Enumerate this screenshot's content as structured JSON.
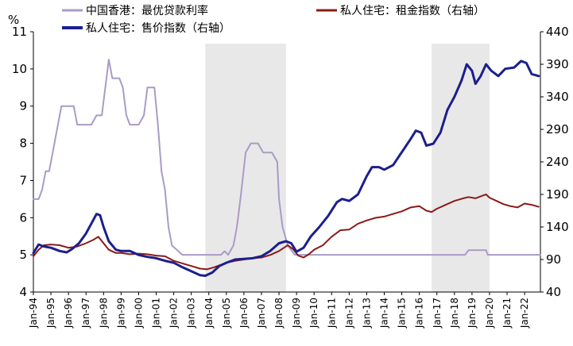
{
  "chart_data": {
    "type": "line",
    "left_axis_unit": "%",
    "left_axis": {
      "ylim": [
        4,
        11
      ],
      "ticks": [
        "4",
        "5",
        "6",
        "7",
        "8",
        "9",
        "10",
        "11"
      ]
    },
    "right_axis": {
      "ylim": [
        40,
        440
      ],
      "ticks": [
        "40",
        "90",
        "140",
        "190",
        "240",
        "290",
        "340",
        "390",
        "440"
      ]
    },
    "x_range": [
      1994.0,
      2022.9
    ],
    "x_tick_labels": [
      "Jan-94",
      "Jan-95",
      "Jan-96",
      "Jan-97",
      "Jan-98",
      "Jan-99",
      "Jan-00",
      "Jan-01",
      "Jan-02",
      "Jan-03",
      "Jan-04",
      "Jan-05",
      "Jan-06",
      "Jan-07",
      "Jan-08",
      "Jan-09",
      "Jan-10",
      "Jan-11",
      "Jan-12",
      "Jan-13",
      "Jan-14",
      "Jan-15",
      "Jan-16",
      "Jan-17",
      "Jan-18",
      "Jan-19",
      "Jan-20",
      "Jan-21",
      "Jan-22"
    ],
    "shaded_periods": [
      [
        2003.8,
        2008.4
      ],
      [
        2016.7,
        2020.0
      ]
    ],
    "series": [
      {
        "name": "中国香港：最优贷款利率",
        "axis": "left",
        "color": "#a99bc7",
        "points": [
          [
            1994.0,
            6.5
          ],
          [
            1994.3,
            6.5
          ],
          [
            1994.5,
            6.75
          ],
          [
            1994.7,
            7.25
          ],
          [
            1994.9,
            7.25
          ],
          [
            1995.1,
            7.75
          ],
          [
            1995.4,
            8.5
          ],
          [
            1995.6,
            9.0
          ],
          [
            1995.9,
            9.0
          ],
          [
            1996.3,
            9.0
          ],
          [
            1996.5,
            8.5
          ],
          [
            1996.8,
            8.5
          ],
          [
            1997.3,
            8.5
          ],
          [
            1997.6,
            8.75
          ],
          [
            1997.9,
            8.75
          ],
          [
            1998.1,
            9.5
          ],
          [
            1998.3,
            10.25
          ],
          [
            1998.5,
            9.75
          ],
          [
            1998.9,
            9.75
          ],
          [
            1999.1,
            9.5
          ],
          [
            1999.3,
            8.75
          ],
          [
            1999.5,
            8.5
          ],
          [
            1999.8,
            8.5
          ],
          [
            2000.0,
            8.5
          ],
          [
            2000.3,
            8.75
          ],
          [
            2000.5,
            9.5
          ],
          [
            2000.9,
            9.5
          ],
          [
            2001.1,
            8.5
          ],
          [
            2001.3,
            7.25
          ],
          [
            2001.5,
            6.75
          ],
          [
            2001.7,
            5.75
          ],
          [
            2001.9,
            5.25
          ],
          [
            2002.5,
            5.0
          ],
          [
            2002.9,
            5.0
          ],
          [
            2003.5,
            5.0
          ],
          [
            2004.0,
            5.0
          ],
          [
            2004.7,
            5.0
          ],
          [
            2004.9,
            5.1
          ],
          [
            2005.1,
            5.0
          ],
          [
            2005.4,
            5.25
          ],
          [
            2005.6,
            5.75
          ],
          [
            2005.8,
            6.5
          ],
          [
            2006.1,
            7.75
          ],
          [
            2006.4,
            8.0
          ],
          [
            2006.8,
            8.0
          ],
          [
            2007.1,
            7.75
          ],
          [
            2007.6,
            7.75
          ],
          [
            2007.9,
            7.5
          ],
          [
            2008.0,
            6.5
          ],
          [
            2008.2,
            5.75
          ],
          [
            2008.5,
            5.25
          ],
          [
            2008.9,
            5.0
          ],
          [
            2009.3,
            5.0
          ],
          [
            2012.0,
            5.0
          ],
          [
            2015.0,
            5.0
          ],
          [
            2018.0,
            5.0
          ],
          [
            2018.6,
            5.0
          ],
          [
            2018.8,
            5.125
          ],
          [
            2019.8,
            5.125
          ],
          [
            2019.9,
            5.0
          ],
          [
            2022.0,
            5.0
          ],
          [
            2022.9,
            5.0
          ]
        ]
      },
      {
        "name": "私人住宅：租金指数（右轴）",
        "axis": "right",
        "color": "#8b1a1a",
        "points": [
          [
            1994.0,
            95
          ],
          [
            1994.3,
            105
          ],
          [
            1994.6,
            112
          ],
          [
            1995.0,
            113
          ],
          [
            1995.5,
            112
          ],
          [
            1996.0,
            108
          ],
          [
            1996.5,
            110
          ],
          [
            1997.0,
            115
          ],
          [
            1997.4,
            120
          ],
          [
            1997.7,
            125
          ],
          [
            1998.0,
            115
          ],
          [
            1998.3,
            105
          ],
          [
            1998.7,
            100
          ],
          [
            1999.0,
            100
          ],
          [
            1999.5,
            98
          ],
          [
            2000.0,
            99
          ],
          [
            2000.5,
            98
          ],
          [
            2001.0,
            96
          ],
          [
            2001.5,
            95
          ],
          [
            2002.0,
            88
          ],
          [
            2002.5,
            84
          ],
          [
            2003.0,
            80
          ],
          [
            2003.5,
            76
          ],
          [
            2003.9,
            75
          ],
          [
            2004.3,
            78
          ],
          [
            2004.7,
            82
          ],
          [
            2005.0,
            85
          ],
          [
            2005.5,
            88
          ],
          [
            2006.0,
            90
          ],
          [
            2006.5,
            92
          ],
          [
            2007.0,
            93
          ],
          [
            2007.5,
            97
          ],
          [
            2008.0,
            103
          ],
          [
            2008.5,
            112
          ],
          [
            2008.8,
            106
          ],
          [
            2009.1,
            96
          ],
          [
            2009.4,
            93
          ],
          [
            2009.7,
            98
          ],
          [
            2010.0,
            105
          ],
          [
            2010.5,
            112
          ],
          [
            2011.0,
            125
          ],
          [
            2011.5,
            135
          ],
          [
            2012.0,
            136
          ],
          [
            2012.5,
            145
          ],
          [
            2013.0,
            150
          ],
          [
            2013.5,
            154
          ],
          [
            2014.0,
            156
          ],
          [
            2014.5,
            160
          ],
          [
            2015.0,
            164
          ],
          [
            2015.5,
            170
          ],
          [
            2016.0,
            172
          ],
          [
            2016.4,
            165
          ],
          [
            2016.7,
            163
          ],
          [
            2017.0,
            168
          ],
          [
            2017.5,
            174
          ],
          [
            2018.0,
            180
          ],
          [
            2018.5,
            184
          ],
          [
            2018.8,
            186
          ],
          [
            2019.2,
            184
          ],
          [
            2019.6,
            188
          ],
          [
            2019.8,
            190
          ],
          [
            2020.0,
            185
          ],
          [
            2020.4,
            180
          ],
          [
            2020.8,
            175
          ],
          [
            2021.2,
            172
          ],
          [
            2021.6,
            170
          ],
          [
            2022.0,
            176
          ],
          [
            2022.4,
            174
          ],
          [
            2022.8,
            171
          ]
        ]
      },
      {
        "name": "私人住宅：售价指数（右轴）",
        "axis": "right",
        "color": "#1c1f8c",
        "points": [
          [
            1994.0,
            100
          ],
          [
            1994.3,
            113
          ],
          [
            1994.6,
            110
          ],
          [
            1995.0,
            108
          ],
          [
            1995.5,
            103
          ],
          [
            1995.9,
            101
          ],
          [
            1996.2,
            106
          ],
          [
            1996.6,
            115
          ],
          [
            1997.0,
            130
          ],
          [
            1997.4,
            150
          ],
          [
            1997.6,
            160
          ],
          [
            1997.8,
            158
          ],
          [
            1998.0,
            140
          ],
          [
            1998.3,
            118
          ],
          [
            1998.7,
            105
          ],
          [
            1999.0,
            103
          ],
          [
            1999.5,
            103
          ],
          [
            2000.0,
            97
          ],
          [
            2000.5,
            94
          ],
          [
            2001.0,
            92
          ],
          [
            2001.5,
            88
          ],
          [
            2002.0,
            85
          ],
          [
            2002.5,
            78
          ],
          [
            2003.0,
            72
          ],
          [
            2003.5,
            66
          ],
          [
            2003.8,
            65
          ],
          [
            2004.2,
            70
          ],
          [
            2004.6,
            80
          ],
          [
            2005.0,
            85
          ],
          [
            2005.5,
            90
          ],
          [
            2006.0,
            91
          ],
          [
            2006.5,
            92
          ],
          [
            2007.0,
            95
          ],
          [
            2007.5,
            103
          ],
          [
            2008.0,
            115
          ],
          [
            2008.4,
            118
          ],
          [
            2008.7,
            115
          ],
          [
            2009.0,
            102
          ],
          [
            2009.4,
            108
          ],
          [
            2009.8,
            125
          ],
          [
            2010.3,
            140
          ],
          [
            2010.8,
            157
          ],
          [
            2011.3,
            178
          ],
          [
            2011.6,
            183
          ],
          [
            2012.0,
            180
          ],
          [
            2012.5,
            190
          ],
          [
            2013.0,
            218
          ],
          [
            2013.3,
            232
          ],
          [
            2013.7,
            232
          ],
          [
            2014.0,
            228
          ],
          [
            2014.5,
            235
          ],
          [
            2015.0,
            255
          ],
          [
            2015.5,
            275
          ],
          [
            2015.8,
            288
          ],
          [
            2016.1,
            285
          ],
          [
            2016.4,
            265
          ],
          [
            2016.8,
            268
          ],
          [
            2017.2,
            285
          ],
          [
            2017.6,
            320
          ],
          [
            2018.0,
            340
          ],
          [
            2018.4,
            365
          ],
          [
            2018.7,
            390
          ],
          [
            2019.0,
            380
          ],
          [
            2019.2,
            360
          ],
          [
            2019.5,
            372
          ],
          [
            2019.8,
            390
          ],
          [
            2020.1,
            380
          ],
          [
            2020.5,
            372
          ],
          [
            2020.9,
            383
          ],
          [
            2021.4,
            385
          ],
          [
            2021.8,
            395
          ],
          [
            2022.1,
            392
          ],
          [
            2022.4,
            375
          ],
          [
            2022.8,
            372
          ]
        ]
      }
    ],
    "legend_placement": "top"
  }
}
